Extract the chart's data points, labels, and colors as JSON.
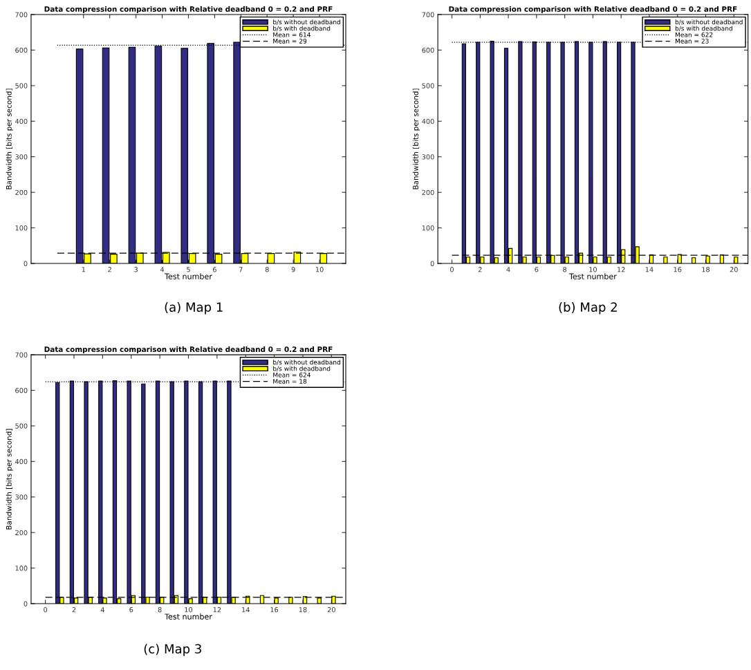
{
  "chart_data": [
    {
      "type": "bar",
      "title": "Data compression comparison with Relative deadband 0 = 0.2 and PRF",
      "xlabel": "Test number",
      "ylabel": "Bandwidth [bits per second]",
      "x": [
        1,
        2,
        3,
        4,
        5,
        6,
        7,
        8,
        9,
        10
      ],
      "series": [
        {
          "name": "b/s without deadband",
          "color": "#332c84",
          "values": [
            603,
            606,
            608,
            611,
            605,
            619,
            622,
            null,
            null,
            null
          ]
        },
        {
          "name": "b/s with deadband",
          "color": "#ffff00",
          "values": [
            27,
            26,
            29,
            31,
            28,
            26,
            28,
            28,
            32,
            28
          ]
        }
      ],
      "xlim": [
        -1,
        11
      ],
      "xticks": [
        1,
        2,
        3,
        4,
        5,
        6,
        7,
        8,
        9,
        10
      ],
      "ylim": [
        0,
        700
      ],
      "yticks": [
        0,
        100,
        200,
        300,
        400,
        500,
        600,
        700
      ],
      "ref_lines": [
        {
          "axis": "y",
          "value": 614,
          "label": "Mean = 614",
          "color": "#000000",
          "line_style": "dotted"
        },
        {
          "axis": "y",
          "value": 29,
          "label": "Mean = 29",
          "color": "#000000",
          "line_style": "dashed"
        }
      ],
      "legend": "top right",
      "grid": false,
      "annotations": [
        "(a) Map 1"
      ]
    },
    {
      "type": "bar",
      "title": "Data compression comparison with Relative deadband 0 = 0.2 and PRF",
      "xlabel": "Test number",
      "ylabel": "Bandwidth [bits per second]",
      "x": [
        1,
        2,
        3,
        4,
        5,
        6,
        7,
        8,
        9,
        10,
        11,
        12,
        13,
        14,
        15,
        16,
        17,
        18,
        19,
        20
      ],
      "series": [
        {
          "name": "b/s without deadband",
          "color": "#332c84",
          "values": [
            618,
            622,
            625,
            605,
            624,
            623,
            622,
            622,
            624,
            622,
            624,
            622,
            622,
            null,
            null,
            null,
            null,
            null,
            null,
            null
          ]
        },
        {
          "name": "b/s with deadband",
          "color": "#ffff00",
          "values": [
            18,
            18,
            16,
            42,
            18,
            18,
            23,
            18,
            29,
            18,
            18,
            39,
            47,
            24,
            18,
            25,
            16,
            21,
            24,
            18
          ]
        }
      ],
      "xlim": [
        -1,
        21
      ],
      "xticks": [
        0,
        2,
        4,
        6,
        8,
        10,
        12,
        14,
        16,
        18,
        20
      ],
      "ylim": [
        0,
        700
      ],
      "yticks": [
        0,
        100,
        200,
        300,
        400,
        500,
        600,
        700
      ],
      "ref_lines": [
        {
          "axis": "y",
          "value": 622,
          "label": "Mean = 622",
          "color": "#000000",
          "line_style": "dotted"
        },
        {
          "axis": "y",
          "value": 23,
          "label": "Mean = 23",
          "color": "#000000",
          "line_style": "dashed"
        }
      ],
      "legend": "top right",
      "grid": false,
      "annotations": [
        "(b) Map 2"
      ]
    },
    {
      "type": "bar",
      "title": "Data compression comparison with Relative deadband 0 = 0.2 and PRF",
      "xlabel": "Test number",
      "ylabel": "Bandwidth [bits per second]",
      "x": [
        1,
        2,
        3,
        4,
        5,
        6,
        7,
        8,
        9,
        10,
        11,
        12,
        13,
        14,
        15,
        16,
        17,
        18,
        19,
        20
      ],
      "series": [
        {
          "name": "b/s without deadband",
          "color": "#332c84",
          "values": [
            622,
            626,
            624,
            626,
            627,
            626,
            618,
            626,
            624,
            626,
            624,
            626,
            626,
            null,
            null,
            null,
            null,
            null,
            null,
            null
          ]
        },
        {
          "name": "b/s with deadband",
          "color": "#ffff00",
          "values": [
            18,
            16,
            18,
            16,
            14,
            23,
            18,
            18,
            23,
            14,
            18,
            18,
            18,
            21,
            23,
            16,
            18,
            20,
            16,
            21
          ]
        }
      ],
      "xlim": [
        -1,
        21
      ],
      "xticks": [
        0,
        2,
        4,
        6,
        8,
        10,
        12,
        14,
        16,
        18,
        20
      ],
      "ylim": [
        0,
        700
      ],
      "yticks": [
        0,
        100,
        200,
        300,
        400,
        500,
        600,
        700
      ],
      "ref_lines": [
        {
          "axis": "y",
          "value": 624,
          "label": "Mean = 624",
          "color": "#000000",
          "line_style": "dotted"
        },
        {
          "axis": "y",
          "value": 18,
          "label": "Mean = 18",
          "color": "#000000",
          "line_style": "dashed"
        }
      ],
      "legend": "top right",
      "grid": false,
      "annotations": [
        "(c) Map 3"
      ]
    }
  ]
}
